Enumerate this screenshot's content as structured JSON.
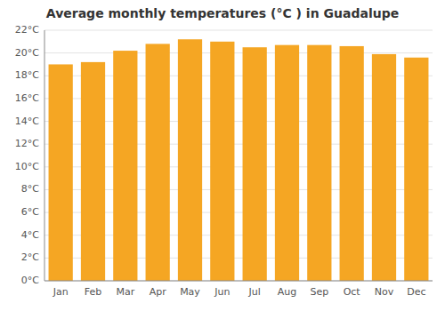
{
  "chart_data": {
    "type": "bar",
    "title": "Average monthly temperatures (°C ) in Guadalupe",
    "categories": [
      "Jan",
      "Feb",
      "Mar",
      "Apr",
      "May",
      "Jun",
      "Jul",
      "Aug",
      "Sep",
      "Oct",
      "Nov",
      "Dec"
    ],
    "values": [
      19.0,
      19.2,
      20.2,
      20.8,
      21.2,
      21.0,
      20.5,
      20.7,
      20.7,
      20.6,
      19.9,
      19.6
    ],
    "color": "#F5A623",
    "ylim": [
      0,
      22
    ],
    "yticks": [
      {
        "value": 0,
        "label": "0°C"
      },
      {
        "value": 2,
        "label": "2°C"
      },
      {
        "value": 4,
        "label": "4°C"
      },
      {
        "value": 6,
        "label": "6°C"
      },
      {
        "value": 8,
        "label": "8°C"
      },
      {
        "value": 10,
        "label": "10°C"
      },
      {
        "value": 12,
        "label": "12°C"
      },
      {
        "value": 14,
        "label": "14°C"
      },
      {
        "value": 16,
        "label": "16°C"
      },
      {
        "value": 18,
        "label": "18°C"
      },
      {
        "value": 20,
        "label": "20°C"
      },
      {
        "value": 22,
        "label": "22°C"
      }
    ],
    "grid": true
  }
}
